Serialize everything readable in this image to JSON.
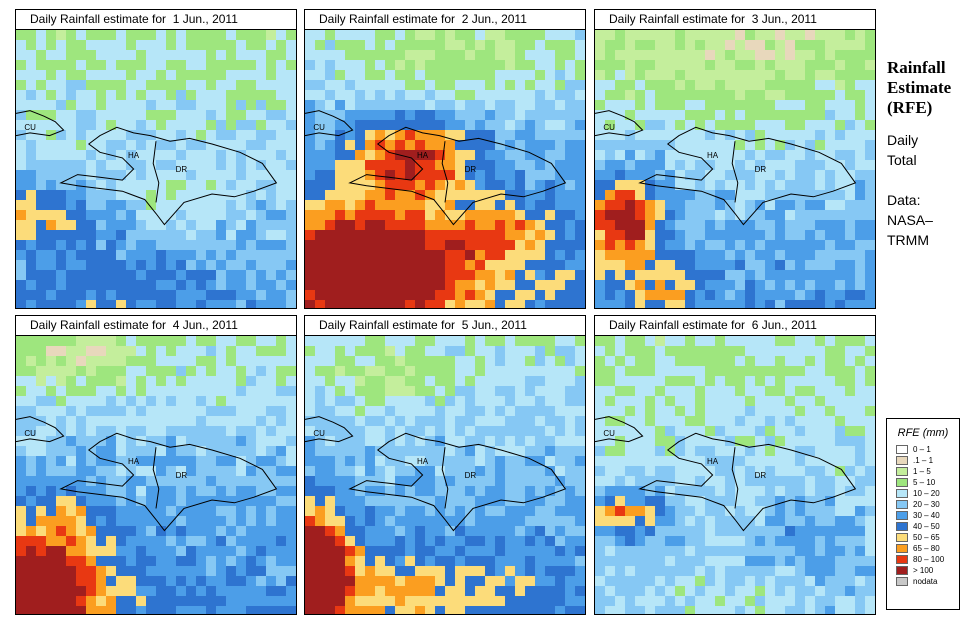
{
  "panels": [
    {
      "title": "Daily Rainfall estimate for  1 Jun., 2011",
      "profile": "day1"
    },
    {
      "title": "Daily Rainfall estimate for  2 Jun., 2011",
      "profile": "day2"
    },
    {
      "title": "Daily Rainfall estimate for  3 Jun., 2011",
      "profile": "day3"
    },
    {
      "title": "Daily Rainfall estimate for  4 Jun., 2011",
      "profile": "day4"
    },
    {
      "title": "Daily Rainfall estimate for  5 Jun., 2011",
      "profile": "day5"
    },
    {
      "title": "Daily Rainfall estimate for  6 Jun., 2011",
      "profile": "day6"
    }
  ],
  "map_labels": {
    "cuba": "CU",
    "haiti": "HA",
    "dominican_republic": "DR"
  },
  "side": {
    "title_lines": [
      "Rainfall",
      "Estimate",
      "(RFE)"
    ],
    "daily_lines": [
      "Daily",
      "Total"
    ],
    "data_lines": [
      "Data:",
      "NASA–",
      "TRMM"
    ]
  },
  "legend": {
    "title": "RFE (mm)",
    "items": [
      {
        "label": "0 – 1",
        "color": "#ffffff"
      },
      {
        "label": ".1 – 1",
        "color": "#e8d8bc"
      },
      {
        "label": "1 – 5",
        "color": "#c4ee9c"
      },
      {
        "label": "5 – 10",
        "color": "#9ee67e"
      },
      {
        "label": "10 – 20",
        "color": "#b6e6f8"
      },
      {
        "label": "20 – 30",
        "color": "#86c8f4"
      },
      {
        "label": "30 – 40",
        "color": "#4c9ee8"
      },
      {
        "label": "40 – 50",
        "color": "#2e74d0"
      },
      {
        "label": "50 – 65",
        "color": "#fcdc7a"
      },
      {
        "label": "65 – 80",
        "color": "#fb9e20"
      },
      {
        "label": "80 – 100",
        "color": "#e83812"
      },
      {
        "label": "> 100",
        "color": "#a01e1e"
      },
      {
        "label": "nodata",
        "color": "#c8c8c8"
      }
    ]
  }
}
